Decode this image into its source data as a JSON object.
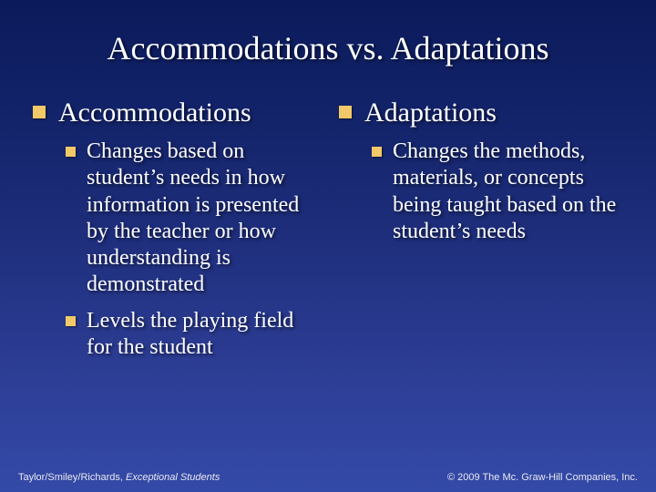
{
  "title": "Accommodations vs. Adaptations",
  "bullet_color": "#f2c968",
  "background_gradient": [
    "#0a1a5a",
    "#1a2a75",
    "#2a3a90",
    "#344aa8"
  ],
  "text_color": "#ffffff",
  "title_fontsize": 36,
  "l1_fontsize": 30,
  "l2_fontsize": 24,
  "left": {
    "heading": "Accommodations",
    "items": [
      "Changes based on student’s needs in how information is presented by the teacher or how understanding is demonstrated",
      "Levels the playing field for the student"
    ]
  },
  "right": {
    "heading": "Adaptations",
    "items": [
      "Changes the methods, materials, or concepts being taught based on the student’s needs"
    ]
  },
  "footer": {
    "left_prefix": "Taylor/Smiley/Richards, ",
    "left_italic": "Exceptional Students",
    "right": "© 2009 The Mc. Graw-Hill Companies, Inc."
  }
}
